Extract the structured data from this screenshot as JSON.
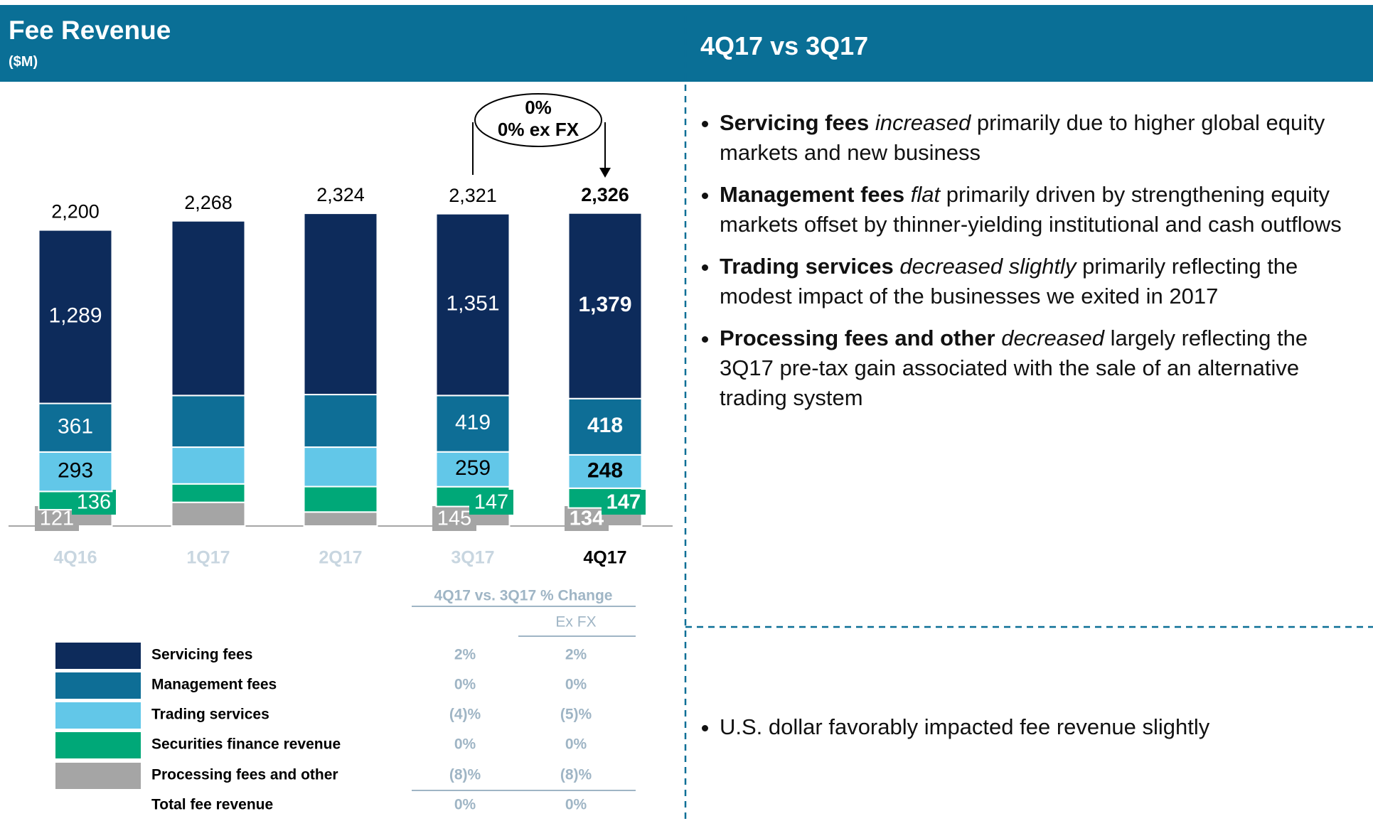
{
  "header": {
    "title": "Fee Revenue",
    "subtitle": "($M)"
  },
  "chart_data": {
    "type": "stacked_bar",
    "categories": [
      "4Q16",
      "1Q17",
      "2Q17",
      "3Q17",
      "4Q17"
    ],
    "highlight_index": 4,
    "ylim": [
      0,
      2800
    ],
    "series": [
      {
        "name": "Processing fees and other",
        "color": "#a5a5a5",
        "label_color": "#ffffff",
        "label_box": true,
        "values": [
          121,
          176,
          104,
          145,
          134
        ],
        "value_labels": [
          "121",
          null,
          null,
          "145",
          "134"
        ]
      },
      {
        "name": "Securities finance revenue",
        "color": "#00a878",
        "label_color": "#ffffff",
        "label_box": true,
        "values": [
          136,
          137,
          189,
          147,
          147
        ],
        "value_labels": [
          "136",
          null,
          null,
          "147",
          "147"
        ]
      },
      {
        "name": "Trading services",
        "color": "#62c7e8",
        "label_color": "#000000",
        "label_box": false,
        "values": [
          293,
          273,
          293,
          259,
          248
        ],
        "value_labels": [
          "293",
          null,
          null,
          "259",
          "248"
        ]
      },
      {
        "name": "Management fees",
        "color": "#0e6e96",
        "label_color": "#ffffff",
        "label_box": false,
        "values": [
          361,
          384,
          391,
          419,
          418
        ],
        "value_labels": [
          "361",
          null,
          null,
          "419",
          "418"
        ]
      },
      {
        "name": "Servicing fees",
        "color": "#0d2b5b",
        "label_color": "#ffffff",
        "label_box": false,
        "values": [
          1289,
          1298,
          1347,
          1351,
          1379
        ],
        "value_labels": [
          "1,289",
          null,
          null,
          "1,351",
          "1,379"
        ]
      }
    ],
    "totals": [
      2200,
      2268,
      2324,
      2321,
      2326
    ],
    "total_labels": [
      "2,200",
      "2,268",
      "2,324",
      "2,321",
      "2,326"
    ],
    "annotation": [
      "0%",
      "0% ex FX"
    ]
  },
  "table": {
    "header": "4Q17 vs. 3Q17 % Change",
    "subheader": "Ex FX",
    "rows": [
      [
        "2%",
        "2%"
      ],
      [
        "0%",
        "0%"
      ],
      [
        "(4)%",
        "(5)%"
      ],
      [
        "0%",
        "0%"
      ],
      [
        "(8)%",
        "(8)%"
      ]
    ],
    "total_label": "Total fee revenue",
    "total_values": [
      "0%",
      "0%"
    ]
  },
  "right_panel": {
    "title": "4Q17 vs 3Q17",
    "bullets": [
      [
        {
          "text": "Servicing fees",
          "style": "bold"
        },
        {
          "text": " ",
          "style": "normal"
        },
        {
          "text": "increased",
          "style": "italic"
        },
        {
          "text": " primarily due to higher global equity markets and new business",
          "style": "normal"
        }
      ],
      [
        {
          "text": "Management fees",
          "style": "bold"
        },
        {
          "text": " ",
          "style": "normal"
        },
        {
          "text": "flat",
          "style": "italic"
        },
        {
          "text": " primarily driven by strengthening equity markets offset by thinner-yielding institutional and cash outflows",
          "style": "normal"
        }
      ],
      [
        {
          "text": "Trading services",
          "style": "bold"
        },
        {
          "text": " ",
          "style": "normal"
        },
        {
          "text": "decreased slightly",
          "style": "italic"
        },
        {
          "text": " primarily reflecting the modest impact of the businesses we exited in 2017",
          "style": "normal"
        }
      ],
      [
        {
          "text": "Processing fees and other",
          "style": "bold"
        },
        {
          "text": " ",
          "style": "normal"
        },
        {
          "text": "decreased",
          "style": "italic"
        },
        {
          "text": " largely reflecting the 3Q17 pre-tax gain associated with the sale of an alternative trading system",
          "style": "normal"
        }
      ]
    ],
    "bottom_bullets": [
      [
        {
          "text": "U.S. dollar favorably impacted fee revenue slightly",
          "style": "normal"
        }
      ]
    ]
  }
}
